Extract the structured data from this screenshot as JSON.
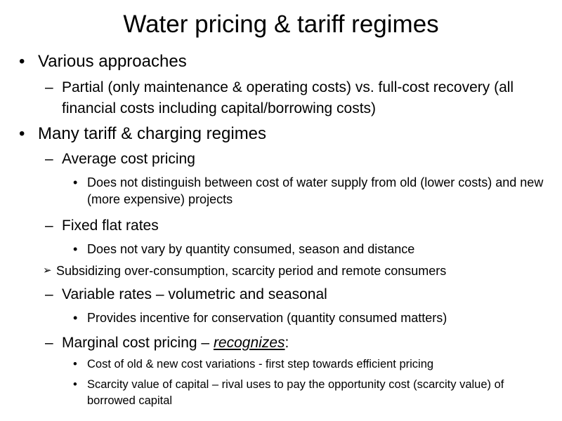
{
  "slide": {
    "title": "Water pricing & tariff regimes",
    "bullets": {
      "b1": "Various approaches",
      "b1_1": "Partial (only maintenance & operating costs) vs. full-cost recovery (all financial costs including capital/borrowing costs)",
      "b2": "Many tariff & charging regimes",
      "b2_1": "Average cost pricing",
      "b2_1_1": "Does not distinguish between cost of water supply from old (lower costs) and new (more expensive) projects",
      "b2_2": "Fixed flat rates",
      "b2_2_1": "Does not vary by quantity consumed, season and distance",
      "b2_arrow": "Subsidizing over-consumption, scarcity period and remote consumers",
      "b2_3": "Variable rates – volumetric and seasonal",
      "b2_3_1": "Provides incentive for conservation (quantity consumed matters)",
      "b2_4_pre": "Marginal cost pricing – ",
      "b2_4_em": "recognizes",
      "b2_4_post": ":",
      "b2_4_1": "Cost of old & new cost variations - first step towards efficient pricing",
      "b2_4_2": "Scarcity value of capital – rival uses to pay the opportunity cost (scarcity value) of borrowed capital"
    },
    "markers": {
      "dot": "•",
      "dash": "–",
      "arrow": "➢"
    }
  }
}
